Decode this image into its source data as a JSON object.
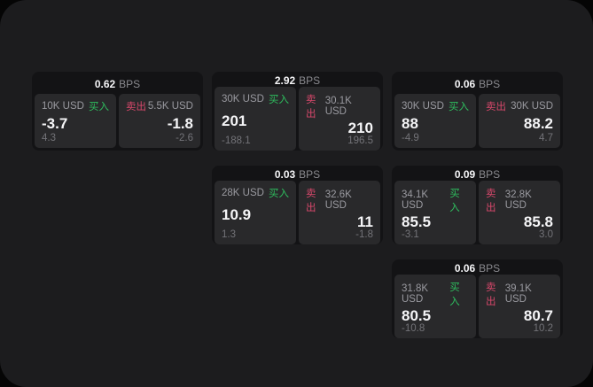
{
  "labels": {
    "buy": "买入",
    "sell": "卖出",
    "bps_unit": "BPS"
  },
  "colors": {
    "buy_green": "#2ebd5e",
    "sell_red": "#d8486b",
    "panel_bg": "#1c1c1e",
    "card_bg": "#131315",
    "subpanel_bg": "#29292b"
  },
  "cards": [
    {
      "bps": "0.62",
      "buy": {
        "size": "10K USD",
        "price": "-3.7",
        "delta": "4.3"
      },
      "sell": {
        "size": "5.5K USD",
        "price": "-1.8",
        "delta": "-2.6"
      }
    },
    {
      "bps": "2.92",
      "buy": {
        "size": "30K USD",
        "price": "201",
        "delta": "-188.1"
      },
      "sell": {
        "size": "30.1K USD",
        "price": "210",
        "delta": "196.5"
      }
    },
    {
      "bps": "0.06",
      "buy": {
        "size": "30K USD",
        "price": "88",
        "delta": "-4.9"
      },
      "sell": {
        "size": "30K USD",
        "price": "88.2",
        "delta": "4.7"
      }
    },
    {
      "bps": "0.03",
      "buy": {
        "size": "28K USD",
        "price": "10.9",
        "delta": "1.3"
      },
      "sell": {
        "size": "32.6K USD",
        "price": "11",
        "delta": "-1.8"
      }
    },
    {
      "bps": "0.09",
      "buy": {
        "size": "34.1K USD",
        "price": "85.5",
        "delta": "-3.1"
      },
      "sell": {
        "size": "32.8K USD",
        "price": "85.8",
        "delta": "3.0"
      }
    },
    {
      "bps": "0.06",
      "buy": {
        "size": "31.8K USD",
        "price": "80.5",
        "delta": "-10.8"
      },
      "sell": {
        "size": "39.1K USD",
        "price": "80.7",
        "delta": "10.2"
      }
    }
  ]
}
